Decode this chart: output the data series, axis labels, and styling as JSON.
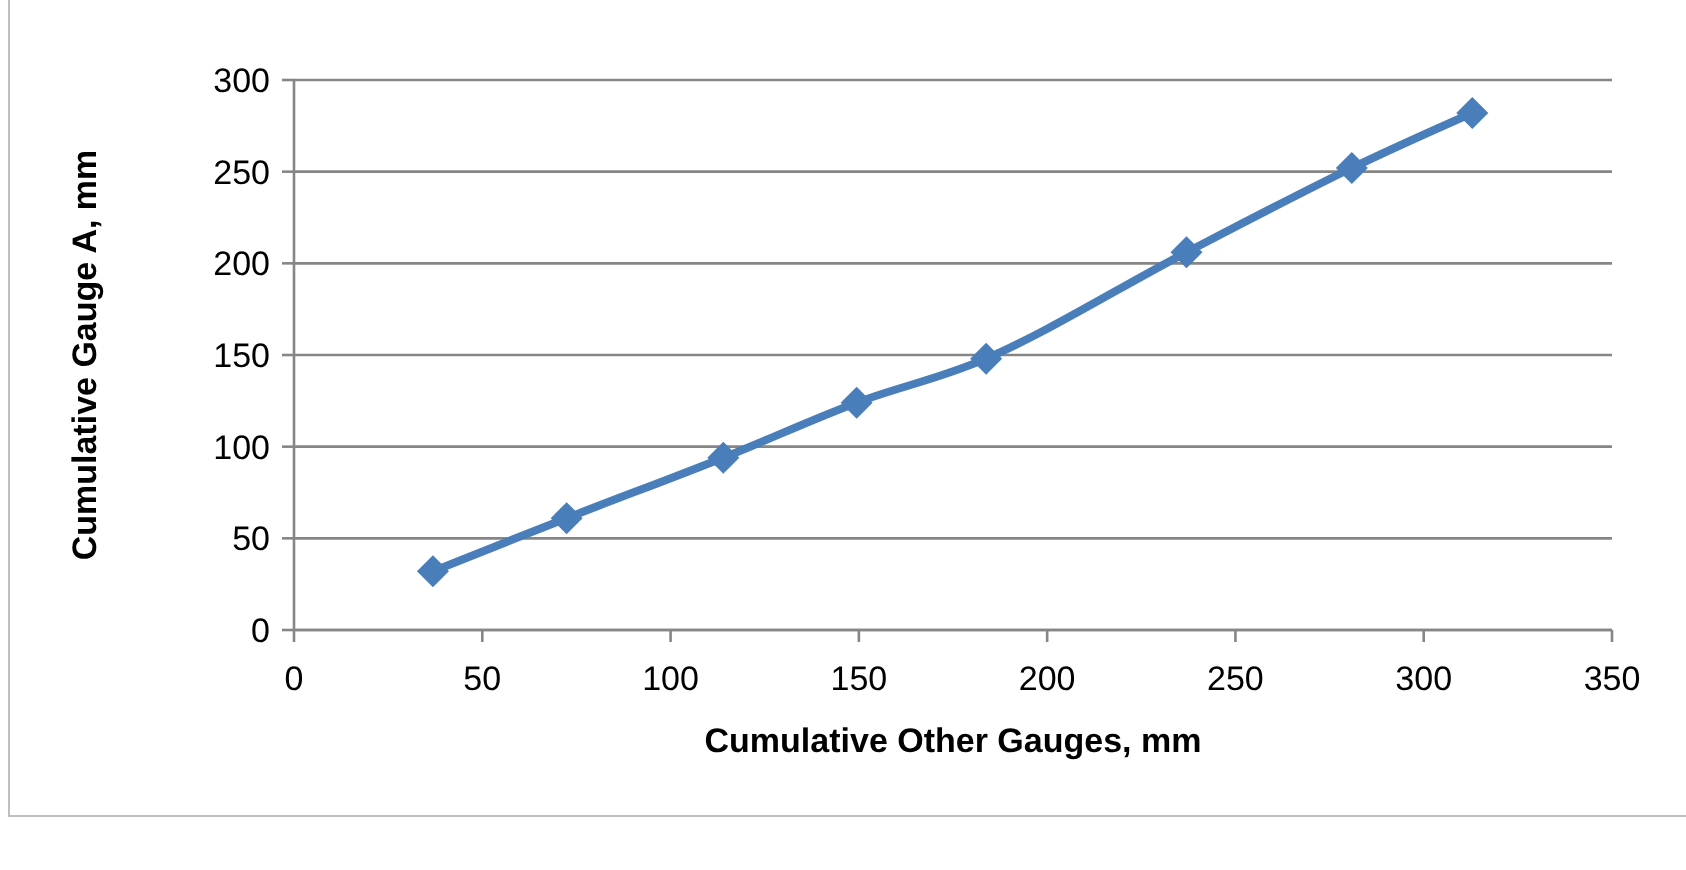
{
  "chart_data": {
    "type": "line",
    "xlabel": "Cumulative Other Gauges, mm",
    "ylabel": "Cumulative Gauge A, mm",
    "x": [
      36.9,
      72.4,
      114,
      149.4,
      183.8,
      237,
      280.9,
      312.9
    ],
    "series": [
      {
        "color": "#4a7ebb",
        "values": [
          32,
          61,
          94,
          124,
          148,
          206,
          252,
          282
        ]
      }
    ],
    "xlim": [
      0,
      350
    ],
    "xticks": [
      0,
      50,
      100,
      150,
      200,
      250,
      300,
      350
    ],
    "ylim": [
      0,
      300
    ],
    "yticks": [
      0,
      50,
      100,
      150,
      200,
      250,
      300
    ],
    "grid": "y",
    "marker": "diamond",
    "line_style": "solid"
  }
}
